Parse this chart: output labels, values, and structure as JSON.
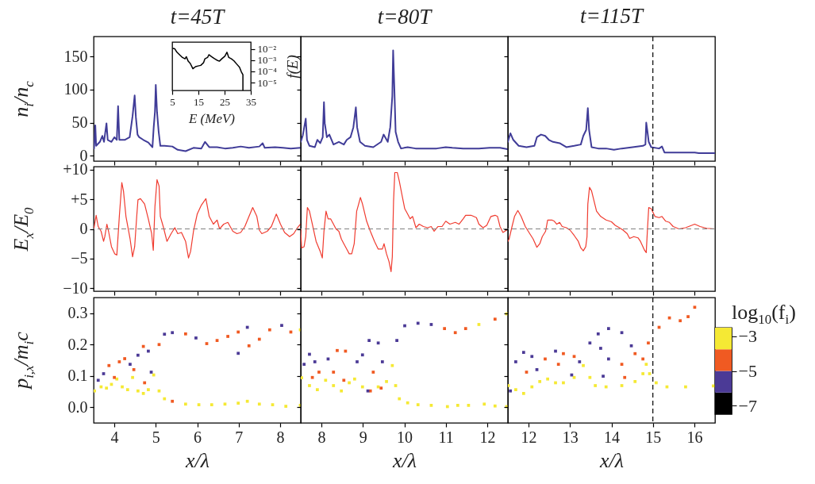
{
  "chart_data": [
    {
      "type": "line",
      "title": "t=45T",
      "ylabel": "n$_{i}$/n$_{c}$",
      "color": "#403c98",
      "xlim": [
        3.5,
        8.5
      ],
      "xticks": [
        4,
        5,
        6,
        7,
        8
      ],
      "ylim": [
        -8,
        180
      ],
      "yticks": [
        0,
        50,
        100,
        150
      ],
      "tick_labels": "y",
      "x": [
        3.51,
        3.54,
        3.56,
        3.65,
        3.71,
        3.75,
        3.81,
        3.84,
        3.93,
        4,
        4.06,
        4.09,
        4.12,
        4.25,
        4.37,
        4.44,
        4.49,
        4.52,
        4.56,
        4.6,
        4.7,
        4.82,
        4.92,
        4.95,
        4.98,
        5,
        5.03,
        5.07,
        5.11,
        5.21,
        5.4,
        5.53,
        5.72,
        5.91,
        6.1,
        6.19,
        6.29,
        6.48,
        6.67,
        6.86,
        7.05,
        7.25,
        7.5,
        7.58,
        7.63,
        7.88,
        8.07,
        8.26,
        8.49
      ],
      "values": [
        11,
        46,
        15,
        21,
        30,
        21,
        49,
        24,
        21,
        28,
        24,
        75,
        24,
        24,
        28,
        60,
        91,
        58,
        32,
        28,
        24,
        20,
        13,
        43,
        66,
        107,
        66,
        36,
        15,
        15,
        14,
        9,
        7,
        12,
        11,
        21,
        13,
        13,
        11,
        12,
        14,
        12,
        14,
        19,
        12,
        13,
        12,
        11,
        12
      ]
    },
    {
      "type": "line",
      "xlabel": "E (MeV)",
      "ylabel": "f(E)",
      "color": "#000000",
      "log": true,
      "xlim": [
        5,
        35
      ],
      "xticks": [
        5,
        15,
        25,
        35
      ],
      "ylim": [
        2e-06,
        0.04
      ],
      "yticks": [
        {
          "value": 0.01,
          "label": "10⁻²"
        },
        {
          "value": 0.001,
          "label": "10⁻³"
        },
        {
          "value": 0.0001,
          "label": "10⁻⁴"
        },
        {
          "value": 1e-05,
          "label": "10⁻⁵"
        }
      ],
      "x": [
        5.3,
        6,
        6.8,
        7.8,
        8.9,
        9.9,
        10.4,
        11.1,
        11.9,
        12.9,
        13.9,
        14.9,
        15.9,
        17,
        17.5,
        18.5,
        19,
        20,
        21,
        22,
        23,
        24.1,
        25.1,
        25.9,
        26.6,
        27.6,
        28.6,
        29.6,
        30.7,
        31.4,
        32,
        32
      ],
      "values": [
        0.011,
        0.01,
        0.005,
        0.003,
        0.0017,
        0.0013,
        0.002,
        0.0008,
        0.0005,
        0.00017,
        0.00026,
        0.0003,
        0.00034,
        0.0006,
        0.0013,
        0.0017,
        0.003,
        0.002,
        0.0014,
        0.001,
        0.0008,
        0.0014,
        0.0022,
        0.005,
        0.0017,
        0.0013,
        0.00085,
        0.00045,
        0.00023,
        9e-05,
        5e-05,
        2e-06
      ]
    },
    {
      "type": "line",
      "title": "t=80T",
      "color": "#403c98",
      "xlim": [
        7.5,
        12.5
      ],
      "xticks": [
        8,
        9,
        10,
        11,
        12
      ],
      "ylim": [
        -8,
        180
      ],
      "yticks": [
        0,
        50,
        100,
        150
      ],
      "tick_labels": false,
      "x": [
        7.5,
        7.55,
        7.62,
        7.65,
        7.71,
        7.84,
        7.9,
        7.97,
        8.03,
        8.06,
        8.08,
        8.13,
        8.19,
        8.29,
        8.42,
        8.54,
        8.61,
        8.7,
        8.77,
        8.83,
        8.86,
        8.93,
        9.05,
        9.25,
        9.44,
        9.5,
        9.6,
        9.66,
        9.71,
        9.73,
        9.76,
        9.79,
        9.85,
        9.92,
        10.08,
        10.27,
        10.52,
        10.78,
        11,
        11.16,
        11.42,
        11.8,
        12.06,
        12.31,
        12.49
      ],
      "values": [
        21,
        31,
        56,
        24,
        15,
        13,
        24,
        19,
        28,
        81,
        49,
        28,
        32,
        17,
        21,
        17,
        24,
        28,
        43,
        73,
        43,
        21,
        15,
        13,
        21,
        32,
        21,
        43,
        90,
        159,
        100,
        36,
        21,
        11,
        13,
        11,
        11,
        11,
        13,
        12,
        11,
        11,
        12,
        12,
        10
      ]
    },
    {
      "type": "line",
      "title": "t=115T",
      "color": "#403c98",
      "xlim": [
        11.5,
        16.5
      ],
      "xticks": [
        12,
        13,
        14,
        15,
        16
      ],
      "ylim": [
        -8,
        180
      ],
      "yticks": [
        0,
        50,
        100,
        150
      ],
      "tick_labels": false,
      "ref_lines": [
        {
          "axis": "x",
          "value": 15,
          "color": "#000000",
          "line_style": "dashed"
        }
      ],
      "x": [
        11.5,
        11.56,
        11.63,
        11.76,
        11.95,
        12.14,
        12.2,
        12.3,
        12.4,
        12.49,
        12.59,
        12.75,
        12.91,
        13.1,
        13.26,
        13.32,
        13.39,
        13.43,
        13.46,
        13.52,
        13.68,
        13.87,
        14.06,
        14.25,
        14.51,
        14.76,
        14.82,
        14.84,
        14.87,
        14.9,
        14.96,
        15.15,
        15.22,
        15.28,
        15.53,
        15.79,
        16.01,
        16.11,
        16.49
      ],
      "values": [
        21,
        34,
        24,
        15,
        13,
        15,
        28,
        32,
        30,
        24,
        21,
        19,
        13,
        15,
        17,
        30,
        39,
        72,
        39,
        13,
        11,
        11,
        9,
        11,
        13,
        15,
        17,
        50,
        36,
        21,
        13,
        11,
        14,
        5,
        5,
        5,
        5,
        4,
        4
      ]
    },
    {
      "type": "line",
      "ylabel": "E$_{x}$/E$_{0}$",
      "color": "#f03c30",
      "xlim": [
        3.5,
        8.5
      ],
      "xticks": [
        4,
        5,
        6,
        7,
        8
      ],
      "ylim": [
        -10.5,
        10.5
      ],
      "yticks": [
        {
          "value": -10,
          "label": "−10"
        },
        {
          "value": -5,
          "label": "−5"
        },
        0,
        {
          "value": 5,
          "label": "+5"
        },
        {
          "value": 10,
          "label": "+10"
        }
      ],
      "tick_labels": "y",
      "ref_lines": [
        {
          "axis": "y",
          "value": 0,
          "color": "#808080",
          "line_style": "dashed"
        }
      ],
      "x": [
        3.51,
        3.56,
        3.61,
        3.68,
        3.74,
        3.77,
        3.82,
        3.86,
        3.93,
        4.01,
        4.06,
        4.12,
        4.18,
        4.22,
        4.28,
        4.38,
        4.44,
        4.49,
        4.54,
        4.57,
        4.63,
        4.73,
        4.82,
        4.9,
        4.94,
        4.98,
        5.03,
        5.08,
        5.11,
        5.18,
        5.27,
        5.37,
        5.46,
        5.53,
        5.62,
        5.72,
        5.79,
        5.84,
        5.91,
        6,
        6.1,
        6.21,
        6.29,
        6.39,
        6.48,
        6.54,
        6.64,
        6.74,
        6.86,
        6.96,
        7.05,
        7.15,
        7.25,
        7.34,
        7.44,
        7.5,
        7.56,
        7.69,
        7.79,
        7.91,
        8.01,
        8.11,
        8.23,
        8.33,
        8.42,
        8.49
      ],
      "values": [
        0.2,
        2.3,
        0.4,
        -0.4,
        -2.1,
        -1.3,
        0.8,
        -0.4,
        -3,
        -4.2,
        -4.4,
        2.1,
        7.8,
        6.4,
        2.1,
        -1.7,
        -4.7,
        -3,
        2.1,
        4.9,
        5.1,
        4.2,
        1.7,
        -0.8,
        -3.6,
        3.8,
        8.3,
        7.2,
        2.1,
        0.4,
        -2.1,
        -0.8,
        0.2,
        -0.8,
        -0.6,
        -2.1,
        -4.9,
        -3.8,
        -0.4,
        2.5,
        4,
        5.1,
        2.1,
        0.8,
        1.5,
        0,
        0.8,
        1.1,
        -0.4,
        -0.8,
        -0.6,
        0.4,
        2.1,
        3.6,
        2.1,
        -0.2,
        -0.8,
        -0.4,
        0.4,
        2.5,
        0.8,
        -0.6,
        -1.3,
        -0.8,
        0.2,
        0.8
      ]
    },
    {
      "type": "line",
      "color": "#f03c30",
      "xlim": [
        7.5,
        12.5
      ],
      "xticks": [
        8,
        9,
        10,
        11,
        12
      ],
      "ylim": [
        -10.5,
        10.5
      ],
      "yticks": [
        -10,
        -5,
        0,
        5,
        10
      ],
      "tick_labels": false,
      "ref_lines": [
        {
          "axis": "y",
          "value": 0,
          "color": "#808080",
          "line_style": "dashed"
        }
      ],
      "x": [
        7.5,
        7.52,
        7.58,
        7.62,
        7.66,
        7.71,
        7.78,
        7.87,
        7.97,
        8.02,
        8.06,
        8.11,
        8.16,
        8.22,
        8.29,
        8.35,
        8.42,
        8.48,
        8.54,
        8.61,
        8.67,
        8.73,
        8.79,
        8.85,
        8.89,
        8.94,
        8.99,
        9.09,
        9.18,
        9.28,
        9.37,
        9.47,
        9.51,
        9.57,
        9.63,
        9.68,
        9.71,
        9.74,
        9.77,
        9.83,
        9.88,
        9.95,
        10.01,
        10.08,
        10.14,
        10.2,
        10.28,
        10.36,
        10.46,
        10.56,
        10.65,
        10.72,
        10.81,
        10.91,
        11,
        11.1,
        11.23,
        11.32,
        11.42,
        11.48,
        11.61,
        11.74,
        11.8,
        11.9,
        11.99,
        12.09,
        12.19,
        12.25,
        12.31,
        12.38,
        12.47
      ],
      "values": [
        0,
        -3.2,
        -3,
        -1.3,
        3.6,
        3,
        0.8,
        -2.1,
        -3.8,
        -4.9,
        -0.4,
        3,
        1.7,
        1.7,
        0.8,
        0,
        -0.4,
        -1.7,
        -2.5,
        -3.4,
        -4.2,
        -4.2,
        -2.5,
        3,
        4,
        5.3,
        4.2,
        1.3,
        -0.4,
        -2.1,
        -3.4,
        -3.4,
        -2.5,
        -4.2,
        -5.5,
        -7.2,
        -4.7,
        4.7,
        9.5,
        9.5,
        8,
        5.5,
        3.4,
        2.5,
        1.7,
        2.1,
        0.2,
        0.8,
        0.4,
        0.2,
        0.4,
        -0.4,
        0.4,
        0.4,
        1.3,
        0.8,
        1.1,
        0.8,
        1.7,
        2.3,
        2.3,
        1.9,
        0.8,
        0.2,
        0.6,
        2.1,
        2.3,
        2.1,
        0.4,
        -0.6,
        -0.2
      ]
    },
    {
      "type": "line",
      "color": "#f03c30",
      "xlim": [
        11.5,
        16.5
      ],
      "xticks": [
        12,
        13,
        14,
        15,
        16
      ],
      "ylim": [
        -10.5,
        10.5
      ],
      "yticks": [
        -10,
        -5,
        0,
        5,
        10
      ],
      "tick_labels": false,
      "ref_lines": [
        {
          "axis": "y",
          "value": 0,
          "color": "#808080",
          "line_style": "dashed"
        },
        {
          "axis": "x",
          "value": 15,
          "color": "#000000",
          "line_style": "dashed"
        }
      ],
      "x": [
        11.5,
        11.53,
        11.6,
        11.66,
        11.74,
        11.82,
        11.92,
        12.01,
        12.11,
        12.2,
        12.27,
        12.33,
        12.41,
        12.46,
        12.56,
        12.62,
        12.68,
        12.75,
        12.81,
        12.91,
        13,
        13.1,
        13.2,
        13.26,
        13.32,
        13.38,
        13.41,
        13.43,
        13.47,
        13.52,
        13.58,
        13.64,
        13.74,
        13.87,
        14,
        14.09,
        14.19,
        14.28,
        14.38,
        14.44,
        14.54,
        14.64,
        14.7,
        14.8,
        14.84,
        14.87,
        14.9,
        14.96,
        15.05,
        15.15,
        15.22,
        15.31,
        15.4,
        15.49,
        15.63,
        15.79,
        16.01,
        16.14,
        16.3,
        16.49
      ],
      "values": [
        -2.1,
        -1.7,
        0.4,
        2.1,
        3.1,
        2.1,
        0.4,
        -0.6,
        -1.7,
        -3.1,
        -2.5,
        -1.3,
        -0.4,
        1.5,
        1.5,
        1.3,
        0.8,
        1.1,
        0.4,
        0.2,
        -0.2,
        -1.1,
        -2.1,
        -3.2,
        -3.7,
        -3,
        -1.3,
        4.2,
        7,
        6.4,
        4.7,
        3,
        2.1,
        1.5,
        1.2,
        0.6,
        0.2,
        -0.2,
        -0.8,
        -1.6,
        -1.3,
        -1.5,
        -2.1,
        -3.6,
        -4,
        0,
        3.6,
        3.4,
        2.1,
        1.9,
        2.1,
        1.3,
        1.1,
        0.4,
        0,
        0.2,
        0.8,
        0.4,
        0.1,
        0
      ]
    },
    {
      "type": "scatter",
      "marker": "square",
      "xlabel": "x/λ",
      "ylabel": "p$_{i,x}$/m$_{i}$c",
      "xlim": [
        3.5,
        8.5
      ],
      "xticks": [
        4,
        5,
        6,
        7,
        8
      ],
      "ylim": [
        -0.05,
        0.35
      ],
      "yticks": [
        {
          "value": 0,
          "label": "0.0"
        },
        0.1,
        0.2,
        0.3
      ],
      "series": [
        {
          "color": "#f5e934",
          "x": [
            3.52,
            3.68,
            3.81,
            3.93,
            4.06,
            4.19,
            4.32,
            4.44,
            4.57,
            4.7,
            4.82,
            4.95,
            5.08,
            5.21,
            5.72,
            6.04,
            6.35,
            6.67,
            6.99,
            7.21,
            7.5,
            7.82,
            8.14,
            8.49,
            8.49
          ],
          "values": [
            0.052,
            0.065,
            0.061,
            0.073,
            0.09,
            0.065,
            0.056,
            0.095,
            0.052,
            0.044,
            0.056,
            0.103,
            0.052,
            0.027,
            0.01,
            0.008,
            0.008,
            0.01,
            0.013,
            0.019,
            0.01,
            0.008,
            0.003,
            0.006,
            0.247
          ]
        },
        {
          "color": "#f05a22",
          "x": [
            5.4,
            3.87,
            4,
            4.12,
            4.25,
            4.47,
            4.7,
            4.73,
            5.08,
            5.72,
            6.23,
            6.48,
            6.74,
            6.99,
            7.25,
            7.5,
            7.75,
            8.26
          ],
          "values": [
            0.019,
            0.133,
            0.095,
            0.145,
            0.155,
            0.12,
            0.194,
            0.078,
            0.2,
            0.234,
            0.203,
            0.213,
            0.226,
            0.24,
            0.196,
            0.217,
            0.247,
            0.24
          ]
        },
        {
          "color": "#4b3a96",
          "x": [
            3.61,
            3.74,
            4.38,
            4.57,
            4.82,
            4.89,
            5.21,
            5.4,
            5.97,
            7.21,
            6.99,
            8.04
          ],
          "values": [
            0.086,
            0.107,
            0.137,
            0.166,
            0.179,
            0.112,
            0.233,
            0.238,
            0.221,
            0.255,
            0.172,
            0.261
          ]
        }
      ]
    },
    {
      "type": "scatter",
      "marker": "square",
      "xlabel": "x/λ",
      "xlim": [
        7.5,
        12.5
      ],
      "xticks": [
        8,
        9,
        10,
        11,
        12
      ],
      "ylim": [
        -0.05,
        0.35
      ],
      "yticks": [
        0,
        0.1,
        0.2,
        0.3
      ],
      "tick_labels": "x",
      "series": [
        {
          "color": "#f5e934",
          "x": [
            7.52,
            7.71,
            7.9,
            8.1,
            8.29,
            8.48,
            8.67,
            8.8,
            8.99,
            9.37,
            9.57,
            9.71,
            9.79,
            9.88,
            10.08,
            10.33,
            10.65,
            11.04,
            11.29,
            11.55,
            11.93,
            12.19,
            12.47,
            11.8,
            12.47
          ],
          "values": [
            0.094,
            0.069,
            0.056,
            0.086,
            0.069,
            0.052,
            0.078,
            0.09,
            0.065,
            0.065,
            0.082,
            0.133,
            0.069,
            0.027,
            0.014,
            0.008,
            0.006,
            0.002,
            0.006,
            0.006,
            0.01,
            0.004,
            0.002,
            0.264,
            0.298
          ]
        },
        {
          "color": "#f05a22",
          "x": [
            9.18,
            7.94,
            7.78,
            8.38,
            8.58,
            8.29,
            8.54,
            9.25,
            9.44,
            10.97,
            11.23,
            11.48,
            12.19
          ],
          "values": [
            0.052,
            0.112,
            0.095,
            0.181,
            0.179,
            0.112,
            0.086,
            0.112,
            0.061,
            0.251,
            0.238,
            0.251,
            0.281
          ]
        },
        {
          "color": "#4b3a96",
          "x": [
            7.58,
            7.71,
            7.84,
            8.16,
            8.86,
            8.99,
            9.15,
            9.37,
            9.47,
            9.12,
            9.82,
            10.01,
            10.33,
            10.65
          ],
          "values": [
            0.137,
            0.169,
            0.145,
            0.154,
            0.145,
            0.167,
            0.213,
            0.205,
            0.145,
            0.052,
            0.213,
            0.26,
            0.268,
            0.264
          ]
        }
      ]
    },
    {
      "type": "scatter",
      "marker": "square",
      "xlabel": "x/λ",
      "xlim": [
        11.5,
        16.5
      ],
      "xticks": [
        12,
        13,
        14,
        15,
        16
      ],
      "ylim": [
        -0.05,
        0.35
      ],
      "yticks": [
        0,
        0.1,
        0.2,
        0.3
      ],
      "tick_labels": "x",
      "clabel": "log$_{10}$(f$_{i}$)",
      "clim": [
        -7.5,
        -2.5
      ],
      "cticks": [
        {
          "value": -3,
          "label": "−3"
        },
        {
          "value": -5,
          "label": "−5"
        },
        {
          "value": -7,
          "label": "−7"
        }
      ],
      "ref_lines": [
        {
          "axis": "x",
          "value": 15,
          "color": "#000000",
          "line_style": "dashed"
        }
      ],
      "series": [
        {
          "color": "#f5e934",
          "x": [
            11.51,
            11.69,
            11.88,
            12.08,
            12.27,
            12.46,
            12.65,
            12.84,
            13.1,
            13.32,
            13.48,
            13.61,
            13.87,
            14.25,
            14.57,
            14.76,
            14.84,
            14.92,
            15.08,
            15.34,
            15.79,
            16.46
          ],
          "values": [
            0.069,
            0.056,
            0.044,
            0.065,
            0.082,
            0.09,
            0.078,
            0.078,
            0.095,
            0.133,
            0.095,
            0.069,
            0.065,
            0.069,
            0.082,
            0.107,
            0.137,
            0.107,
            0.078,
            0.065,
            0.065,
            0.068
          ]
        },
        {
          "color": "#f05a22",
          "x": [
            11.95,
            12.4,
            12.84,
            13.1,
            12.72,
            14.57,
            14.25,
            14.32,
            14.76,
            14.89,
            15.15,
            15.4,
            15.66,
            15.85,
            16.01
          ],
          "values": [
            0.112,
            0.154,
            0.171,
            0.162,
            0.137,
            0.171,
            0.137,
            0.095,
            0.154,
            0.205,
            0.255,
            0.285,
            0.276,
            0.289,
            0.319
          ]
        },
        {
          "color": "#4b3a96",
          "x": [
            11.56,
            11.69,
            11.88,
            12.08,
            12.2,
            12.65,
            13.04,
            13.23,
            13.48,
            13.68,
            13.93,
            14.25,
            14.48,
            13.74,
            13.93,
            13.8
          ],
          "values": [
            0.052,
            0.145,
            0.175,
            0.162,
            0.12,
            0.179,
            0.103,
            0.145,
            0.205,
            0.234,
            0.251,
            0.238,
            0.196,
            0.188,
            0.154,
            0.099
          ]
        }
      ]
    }
  ]
}
